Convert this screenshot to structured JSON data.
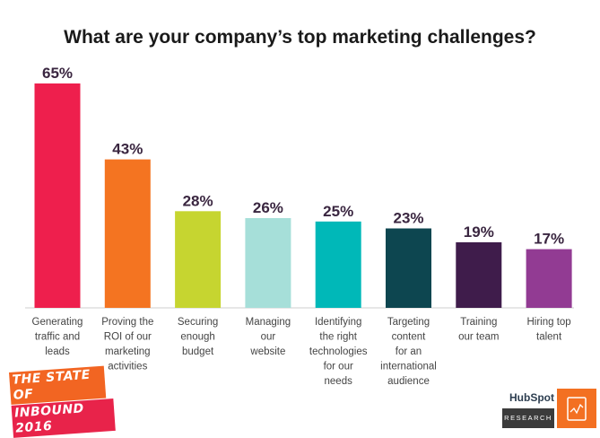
{
  "chart_data": {
    "type": "bar",
    "title": "What are your company’s top marketing challenges?",
    "categories": [
      [
        "Generating",
        "traffic and",
        "leads"
      ],
      [
        "Proving the",
        "ROI of our",
        "marketing",
        "activities"
      ],
      [
        "Securing",
        "enough",
        "budget"
      ],
      [
        "Managing",
        "our",
        "website"
      ],
      [
        "Identifying",
        "the right",
        "technologies",
        "for our",
        "needs"
      ],
      [
        "Targeting",
        "content",
        "for an",
        "international",
        "audience"
      ],
      [
        "Training",
        "our team"
      ],
      [
        "Hiring top",
        "talent"
      ]
    ],
    "values": [
      65,
      43,
      28,
      26,
      25,
      23,
      19,
      17
    ],
    "value_labels": [
      "65%",
      "43%",
      "28%",
      "26%",
      "25%",
      "23%",
      "19%",
      "17%"
    ],
    "colors": [
      "#ee1f4d",
      "#f47421",
      "#c6d530",
      "#a6dfd9",
      "#00b8b8",
      "#0d4650",
      "#3f1c4b",
      "#923b93"
    ],
    "ylim": [
      0,
      65
    ],
    "grid": false,
    "legend": "none"
  },
  "badge": {
    "line1": "THE STATE OF",
    "line2": "INBOUND 2016"
  },
  "brand": {
    "name": "HubSpot",
    "subtitle": "RESEARCH",
    "icon": "report-chart-icon"
  }
}
